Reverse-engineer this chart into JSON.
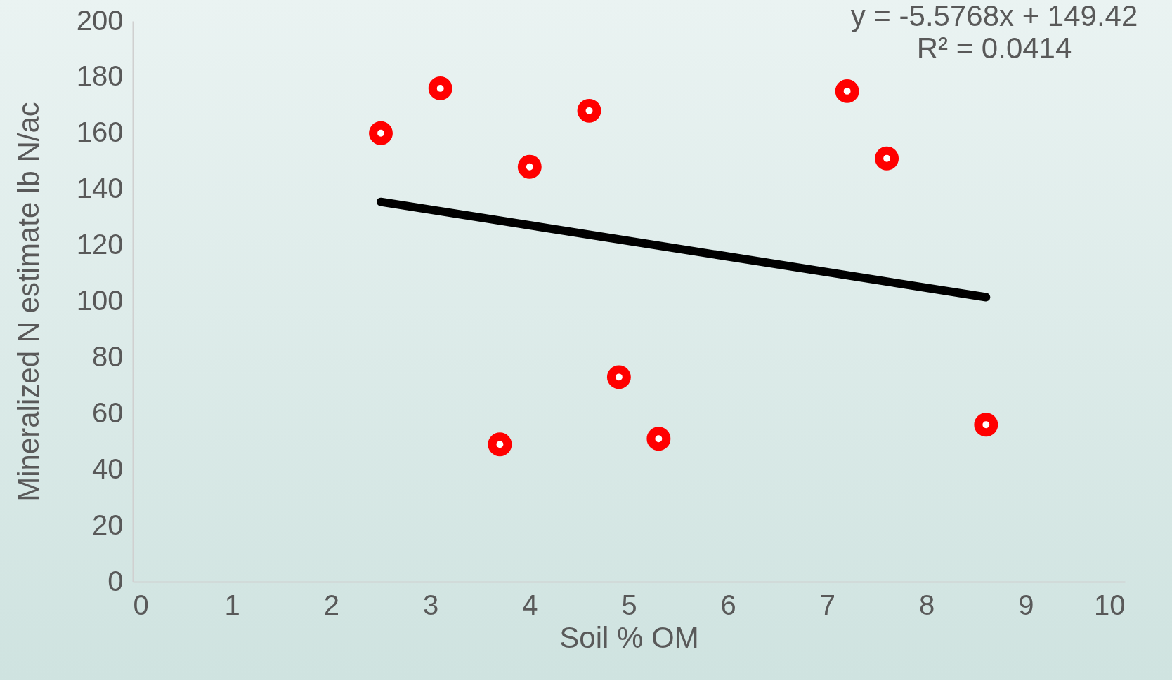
{
  "chart_data": {
    "type": "scatter",
    "xlabel": "Soil % OM",
    "ylabel": "Mineralized N estimate lb N/ac",
    "xlim": [
      0,
      10
    ],
    "xticks": [
      0,
      1,
      2,
      3,
      4,
      5,
      6,
      7,
      8,
      9,
      10
    ],
    "ylim": [
      0,
      200
    ],
    "yticks": [
      0,
      20,
      40,
      60,
      80,
      100,
      120,
      140,
      160,
      180,
      200
    ],
    "grid": false,
    "series": [
      {
        "color": "#ff0000",
        "marker": "circle",
        "x": [
          2.5,
          3.1,
          3.7,
          4.0,
          4.6,
          4.9,
          5.3,
          7.2,
          7.6,
          8.6
        ],
        "values": [
          160,
          176,
          49,
          148,
          168,
          73,
          51,
          175,
          151,
          56
        ]
      },
      {
        "type": "line",
        "color": "#000000",
        "x": [
          2.5,
          8.6
        ],
        "values": [
          135.5,
          101.5
        ]
      }
    ],
    "annotations": [
      "y = -5.5768x + 149.42",
      "R² = 0.0414"
    ]
  }
}
